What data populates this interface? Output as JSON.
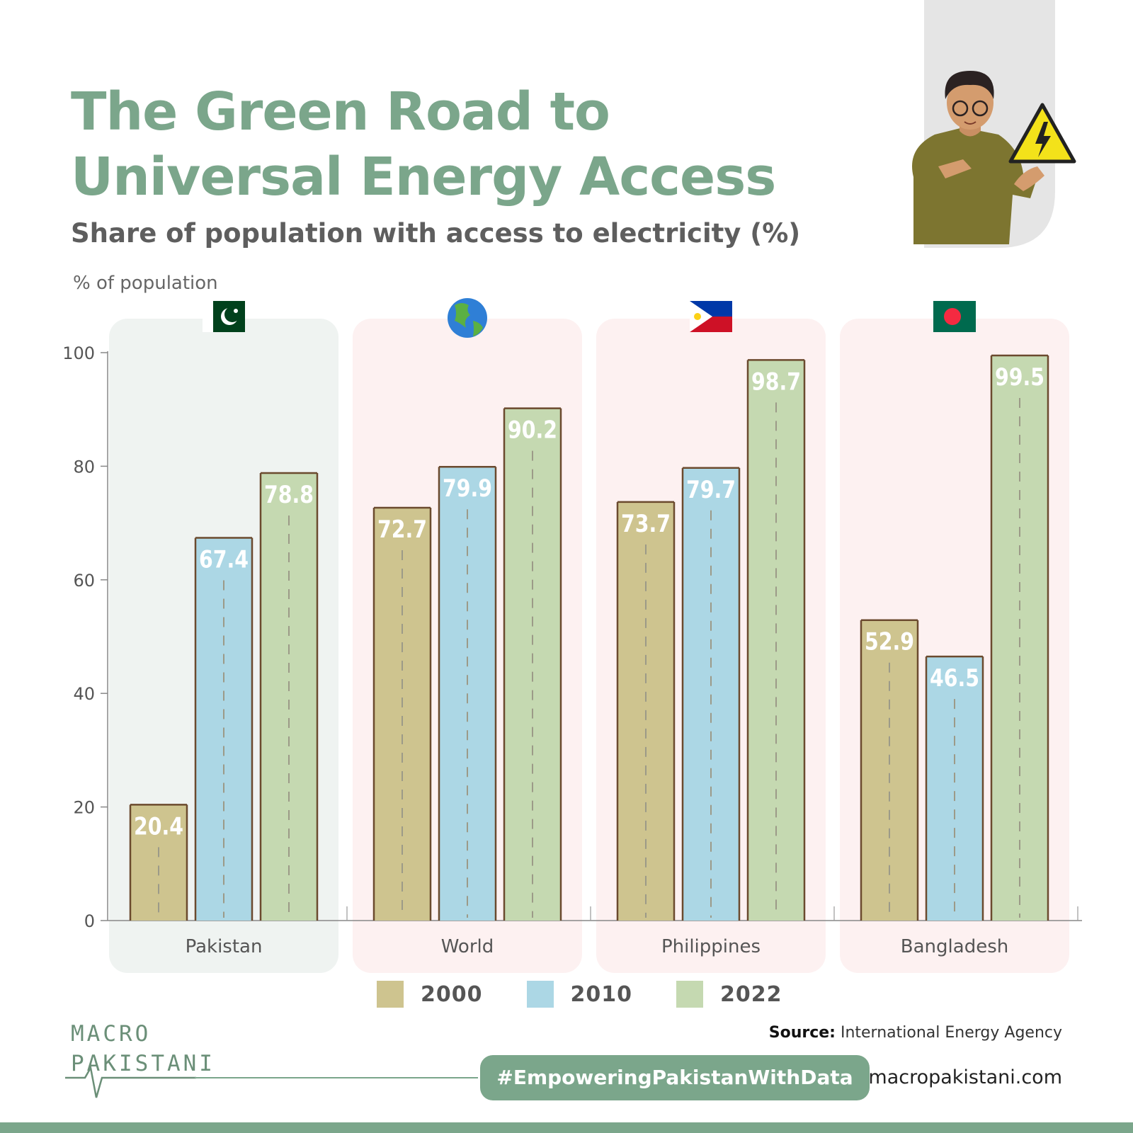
{
  "title_line1": "The Green Road to",
  "title_line2": "Universal Energy Access",
  "subtitle": "Share of population with access to electricity (%)",
  "source_label": "Source:",
  "source_text": "International Energy Agency",
  "hashtag": "#EmpoweringPakistanWithData",
  "website": "macropakistani.com",
  "logo": {
    "line1": "MACRO",
    "line2": "PAKISTANI"
  },
  "colors": {
    "title": "#7ba68b",
    "bar_2000": "#cec48f",
    "bar_2010": "#acd7e5",
    "bar_2022": "#c5d9b1",
    "bar_edge": "#6b4a2e",
    "panel_pakistan": "#eff3f1",
    "panel_other": "#fdf1f1"
  },
  "chart_data": {
    "type": "bar",
    "ylabel": "% of population",
    "ylim": [
      0,
      100
    ],
    "yticks": [
      "0",
      "20",
      "40",
      "60",
      "80",
      "100"
    ],
    "categories": [
      "Pakistan",
      "World",
      "Philippines",
      "Bangladesh"
    ],
    "category_icons": [
      "pakistan-flag-icon",
      "globe-icon",
      "philippines-flag-icon",
      "bangladesh-flag-icon"
    ],
    "series": [
      {
        "name": "2000",
        "values": [
          20.4,
          72.7,
          73.7,
          52.9
        ]
      },
      {
        "name": "2010",
        "values": [
          67.4,
          79.9,
          79.7,
          46.5
        ]
      },
      {
        "name": "2022",
        "values": [
          78.8,
          90.2,
          98.7,
          99.5
        ]
      }
    ],
    "data_labels": [
      [
        "20.4",
        "67.4",
        "78.8"
      ],
      [
        "72.7",
        "79.9",
        "90.2"
      ],
      [
        "73.7",
        "79.7",
        "98.7"
      ],
      [
        "52.9",
        "46.5",
        "99.5"
      ]
    ],
    "legend": [
      "2000",
      "2010",
      "2022"
    ],
    "legend_position": "bottom"
  }
}
